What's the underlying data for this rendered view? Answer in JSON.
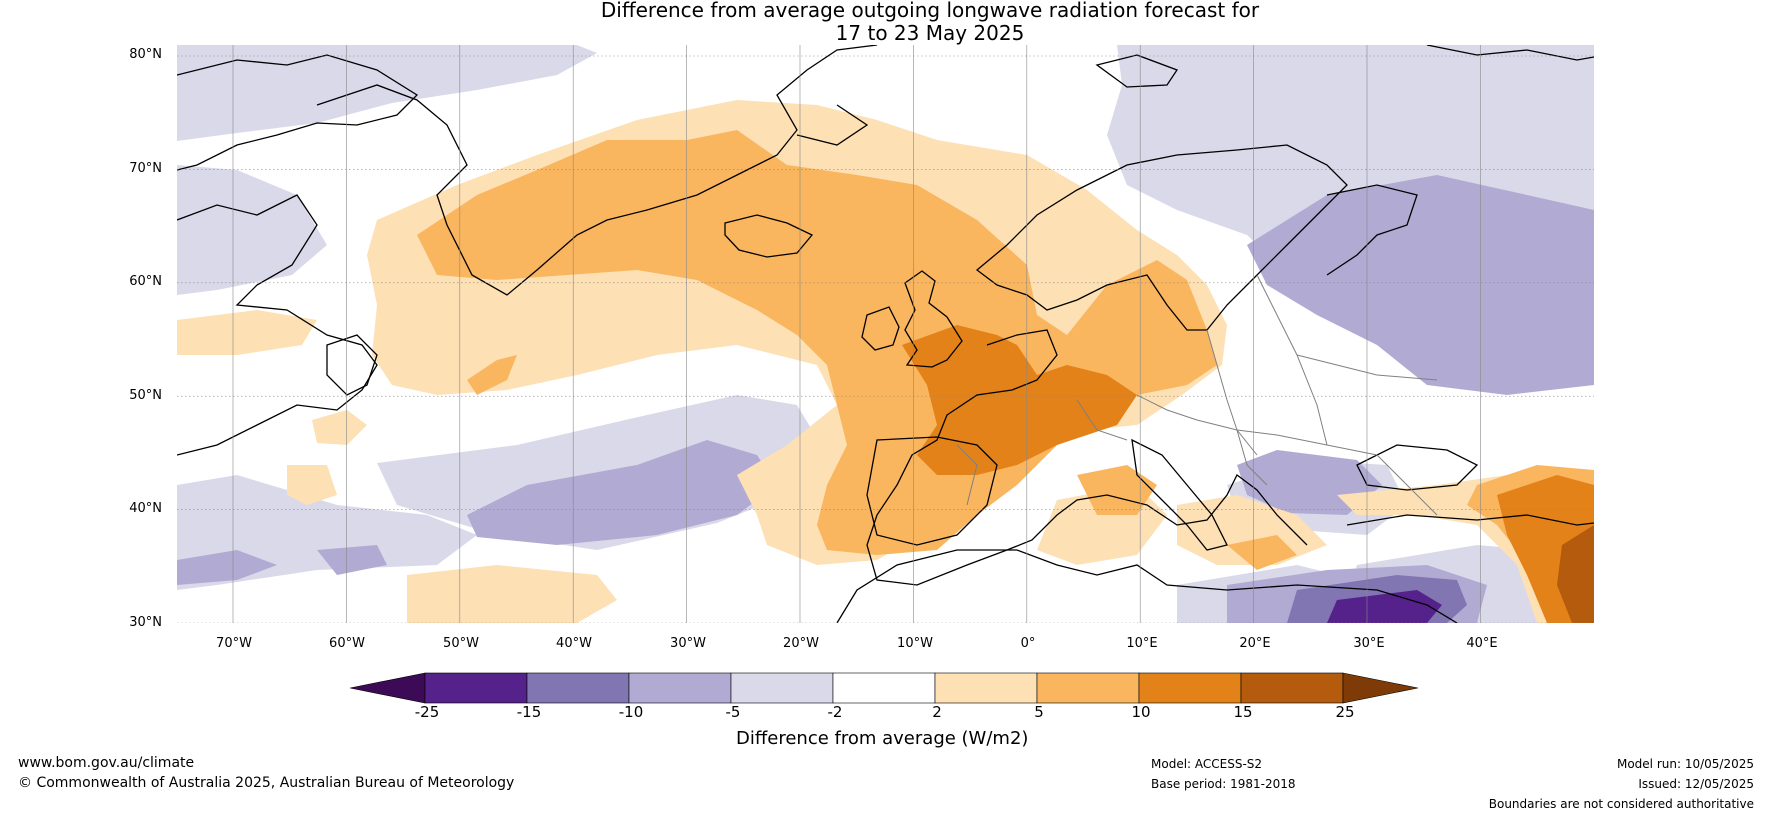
{
  "title": {
    "line1": "Difference from average outgoing longwave radiation forecast for",
    "line2": "17 to 23 May 2025"
  },
  "map": {
    "lat_labels": [
      "80°N",
      "70°N",
      "60°N",
      "50°N",
      "40°N",
      "30°N"
    ],
    "lon_labels": [
      "70°W",
      "60°W",
      "50°W",
      "40°W",
      "30°W",
      "20°W",
      "10°W",
      "0°",
      "10°E",
      "20°E",
      "30°E",
      "40°E"
    ],
    "colors": {
      "coast": "#000000",
      "borders": "#808080",
      "grid": "#888888"
    }
  },
  "legend": {
    "title": "Difference from average (W/m2)",
    "ticks": [
      "-25",
      "-15",
      "-10",
      "-5",
      "-2",
      "2",
      "5",
      "10",
      "15",
      "25"
    ],
    "colors": [
      "#3d0a57",
      "#54228a",
      "#8176b2",
      "#b1aad3",
      "#d9d9ea",
      "#ffffff",
      "#fde0b4",
      "#fab55f",
      "#e28219",
      "#b55b0d",
      "#7e3b07"
    ]
  },
  "footer": {
    "website": "www.bom.gov.au/climate",
    "copyright": "© Commonwealth of Australia 2025, Australian Bureau of Meteorology",
    "model": "Model: ACCESS-S2",
    "base_period": "Base period: 1981-2018",
    "model_run": "Model run: 10/05/2025",
    "issued": "Issued: 12/05/2025",
    "disclaimer": "Boundaries are not considered authoritative"
  }
}
